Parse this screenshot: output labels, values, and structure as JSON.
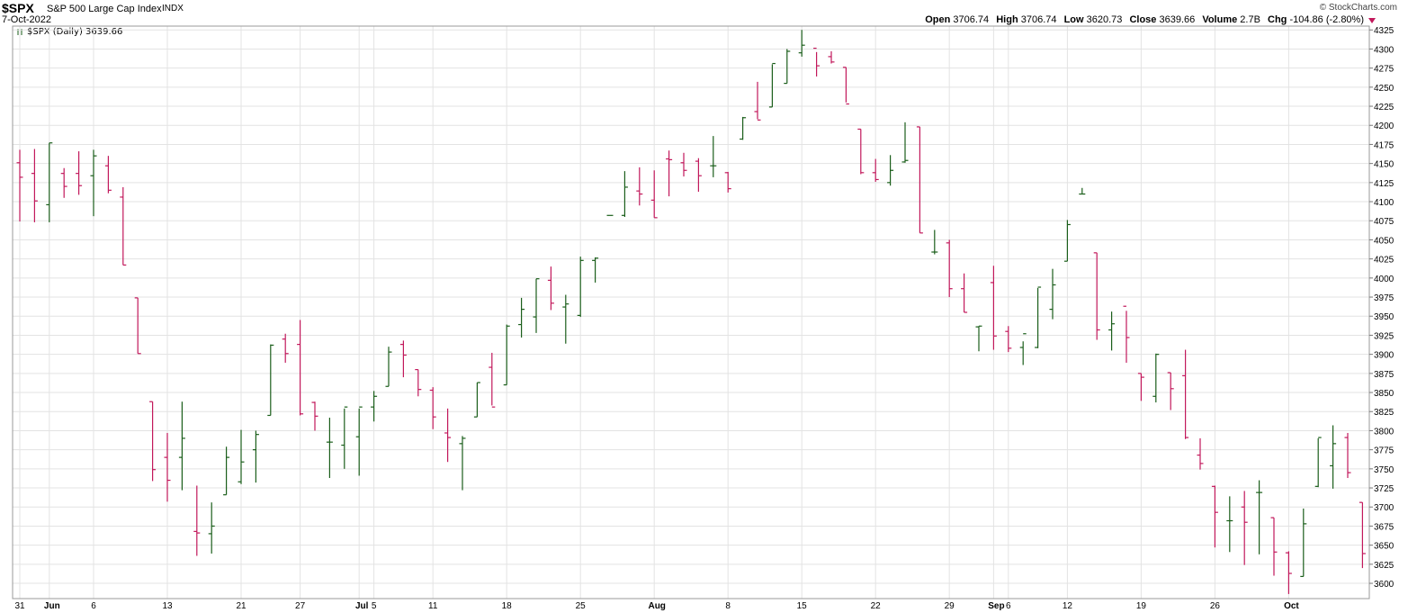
{
  "header": {
    "symbol": "$SPX",
    "name": "S&P 500 Large Cap Index",
    "exchange": "INDX",
    "date": "7-Oct-2022",
    "brand": "© StockCharts.com",
    "open_label": "Open",
    "open": "3706.74",
    "high_label": "High",
    "high": "3706.74",
    "low_label": "Low",
    "low": "3620.73",
    "close_label": "Close",
    "close": "3639.66",
    "volume_label": "Volume",
    "volume": "2.7B",
    "chg_label": "Chg",
    "chg": "-104.86 (-2.80%)"
  },
  "legend": "$SPX (Daily) 3639.66",
  "colors": {
    "up": "#1a5e1a",
    "down": "#c2185b",
    "grid": "#e3e3e3"
  },
  "chart_data": {
    "type": "ohlc",
    "ylim": [
      3580,
      4330
    ],
    "y_ticks": [
      3600,
      3625,
      3650,
      3675,
      3700,
      3725,
      3750,
      3775,
      3800,
      3825,
      3850,
      3875,
      3900,
      3925,
      3950,
      3975,
      4000,
      4025,
      4050,
      4075,
      4100,
      4125,
      4150,
      4175,
      4200,
      4225,
      4250,
      4275,
      4300,
      4325
    ],
    "x_ticks": [
      {
        "i": 0,
        "label": "31"
      },
      {
        "i": 2,
        "label": "Jun"
      },
      {
        "i": 5,
        "label": "6"
      },
      {
        "i": 10,
        "label": "13"
      },
      {
        "i": 15,
        "label": "21"
      },
      {
        "i": 19,
        "label": "27"
      },
      {
        "i": 23,
        "label": "Jul"
      },
      {
        "i": 24,
        "label": "5"
      },
      {
        "i": 28,
        "label": "11"
      },
      {
        "i": 33,
        "label": "18"
      },
      {
        "i": 38,
        "label": "25"
      },
      {
        "i": 43,
        "label": "Aug"
      },
      {
        "i": 48,
        "label": "8"
      },
      {
        "i": 53,
        "label": "15"
      },
      {
        "i": 58,
        "label": "22"
      },
      {
        "i": 63,
        "label": "29"
      },
      {
        "i": 66,
        "label": "Sep"
      },
      {
        "i": 67,
        "label": "6"
      },
      {
        "i": 71,
        "label": "12"
      },
      {
        "i": 76,
        "label": "19"
      },
      {
        "i": 81,
        "label": "26"
      },
      {
        "i": 86,
        "label": "Oct"
      }
    ],
    "bars": [
      [
        4151,
        4168,
        4074,
        4132
      ],
      [
        4137,
        4169,
        4073,
        4101
      ],
      [
        4096,
        4177,
        4073,
        4177
      ],
      [
        4137,
        4144,
        4105,
        4120
      ],
      [
        4137,
        4166,
        4109,
        4121
      ],
      [
        4134,
        4168,
        4081,
        4160
      ],
      [
        4147,
        4160,
        4111,
        4115
      ],
      [
        4106,
        4119,
        4017,
        4017
      ],
      [
        3974,
        3974,
        3901,
        3901
      ],
      [
        3838,
        3838,
        3734,
        3749
      ],
      [
        3765,
        3797,
        3707,
        3735
      ],
      [
        3765,
        3838,
        3722,
        3790
      ],
      [
        3668,
        3728,
        3636,
        3666
      ],
      [
        3665,
        3706,
        3639,
        3675
      ],
      [
        3716,
        3779,
        3716,
        3765
      ],
      [
        3733,
        3801,
        3730,
        3759
      ],
      [
        3775,
        3800,
        3732,
        3795
      ],
      [
        3820,
        3913,
        3820,
        3912
      ],
      [
        3920,
        3927,
        3889,
        3901
      ],
      [
        3913,
        3945,
        3820,
        3822
      ],
      [
        3837,
        3838,
        3800,
        3819
      ],
      [
        3785,
        3817,
        3738,
        3785
      ],
      [
        3781,
        3829,
        3750,
        3831
      ],
      [
        3792,
        3829,
        3741,
        3831
      ],
      [
        3831,
        3852,
        3812,
        3845
      ],
      [
        3858,
        3910,
        3858,
        3903
      ],
      [
        3913,
        3918,
        3870,
        3899
      ],
      [
        3880,
        3880,
        3845,
        3854
      ],
      [
        3853,
        3857,
        3802,
        3818
      ],
      [
        3797,
        3829,
        3759,
        3791
      ],
      [
        3783,
        3793,
        3722,
        3790
      ],
      [
        3818,
        3863,
        3818,
        3863
      ],
      [
        3883,
        3902,
        3833,
        3831
      ],
      [
        3860,
        3939,
        3860,
        3937
      ],
      [
        3939,
        3974,
        3922,
        3959
      ],
      [
        3949,
        3999,
        3928,
        3999
      ],
      [
        3997,
        4015,
        3958,
        3967
      ],
      [
        3962,
        3978,
        3914,
        3966
      ],
      [
        3951,
        4028,
        3949,
        4023
      ],
      [
        4023,
        4027,
        3994,
        4026
      ],
      [
        4082,
        4082,
        4082,
        4082
      ],
      [
        4082,
        4140,
        4080,
        4119
      ],
      [
        4114,
        4145,
        4095,
        4110
      ],
      [
        4102,
        4141,
        4079,
        4079
      ],
      [
        4156,
        4167,
        4107,
        4155
      ],
      [
        4151,
        4164,
        4133,
        4141
      ],
      [
        4153,
        4157,
        4113,
        4134
      ],
      [
        4147,
        4186,
        4132,
        4147
      ],
      [
        4138,
        4139,
        4112,
        4117
      ],
      [
        4182,
        4211,
        4181,
        4210
      ],
      [
        4218,
        4257,
        4208,
        4207
      ],
      [
        4224,
        4280,
        4224,
        4281
      ],
      [
        4255,
        4300,
        4255,
        4297
      ],
      [
        4295,
        4325,
        4290,
        4305
      ],
      [
        4301,
        4296,
        4264,
        4278
      ],
      [
        4290,
        4297,
        4281,
        4283
      ],
      [
        4276,
        4276,
        4230,
        4228
      ],
      [
        4195,
        4195,
        4136,
        4138
      ],
      [
        4138,
        4156,
        4126,
        4129
      ],
      [
        4125,
        4161,
        4121,
        4141
      ],
      [
        4152,
        4204,
        4151,
        4154
      ],
      [
        4198,
        4198,
        4059,
        4059
      ],
      [
        4034,
        4063,
        4031,
        4034
      ],
      [
        4046,
        4050,
        3975,
        3986
      ],
      [
        3986,
        4006,
        3955,
        3955
      ],
      [
        3936,
        3937,
        3904,
        3937
      ],
      [
        3994,
        4016,
        3906,
        3924
      ],
      [
        3930,
        3937,
        3903,
        3908
      ],
      [
        3909,
        3917,
        3886,
        3927
      ],
      [
        3909,
        3987,
        3908,
        3988
      ],
      [
        3959,
        4012,
        3946,
        3991
      ],
      [
        4022,
        4076,
        4022,
        4070
      ],
      [
        4110,
        4118,
        4110,
        4110
      ],
      [
        4033,
        4033,
        3919,
        3932
      ],
      [
        3932,
        3956,
        3905,
        3940
      ],
      [
        3963,
        3957,
        3889,
        3922
      ],
      [
        3875,
        3875,
        3839,
        3870
      ],
      [
        3845,
        3901,
        3837,
        3900
      ],
      [
        3876,
        3876,
        3827,
        3855
      ],
      [
        3872,
        3906,
        3789,
        3791
      ],
      [
        3768,
        3790,
        3749,
        3757
      ],
      [
        3727,
        3728,
        3647,
        3693
      ],
      [
        3682,
        3714,
        3641,
        3682
      ],
      [
        3700,
        3721,
        3624,
        3680
      ],
      [
        3719,
        3735,
        3638,
        3719
      ],
      [
        3686,
        3686,
        3610,
        3641
      ],
      [
        3640,
        3642,
        3586,
        3613
      ],
      [
        3609,
        3698,
        3609,
        3678
      ],
      [
        3727,
        3790,
        3726,
        3791
      ],
      [
        3754,
        3807,
        3724,
        3783
      ],
      [
        3791,
        3797,
        3738,
        3745
      ],
      [
        3706,
        3706,
        3620,
        3639
      ]
    ]
  }
}
